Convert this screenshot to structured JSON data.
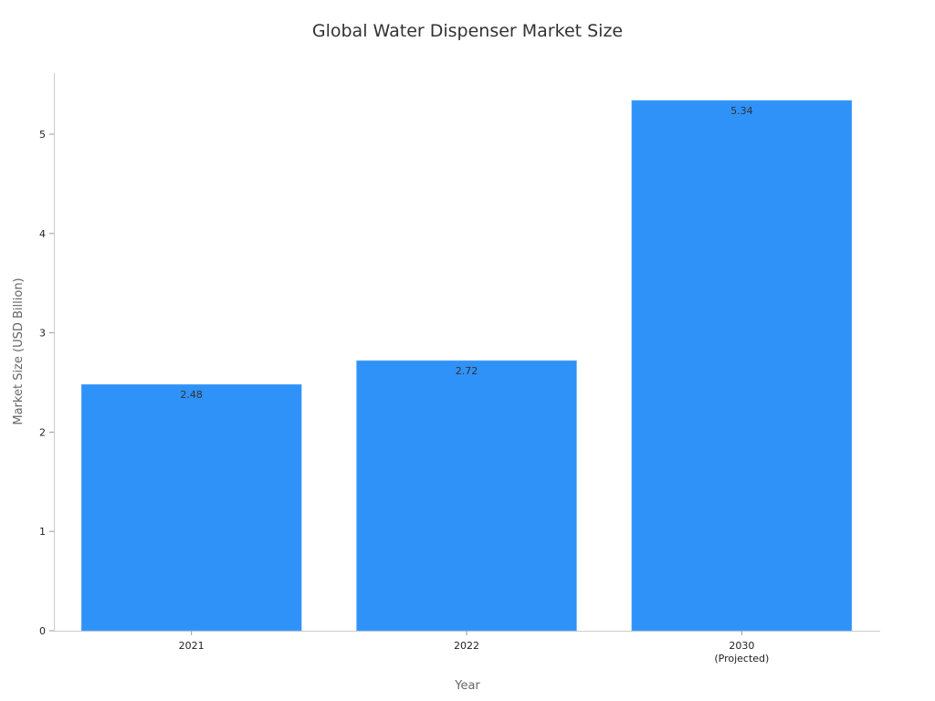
{
  "chart_data": {
    "type": "bar",
    "title": "Global Water Dispenser Market Size",
    "xlabel": "Year",
    "ylabel": "Market Size (USD Billion)",
    "categories": [
      [
        "2021"
      ],
      [
        "2022"
      ],
      [
        "2030",
        "(Projected)"
      ]
    ],
    "values": [
      2.48,
      2.72,
      5.34
    ],
    "data_labels": [
      "2.48",
      "2.72",
      "5.34"
    ],
    "yticks": [
      0,
      1,
      2,
      3,
      4,
      5
    ],
    "ylim": [
      0,
      5.62
    ],
    "grid": false,
    "bar_color": "#2f92f8"
  }
}
